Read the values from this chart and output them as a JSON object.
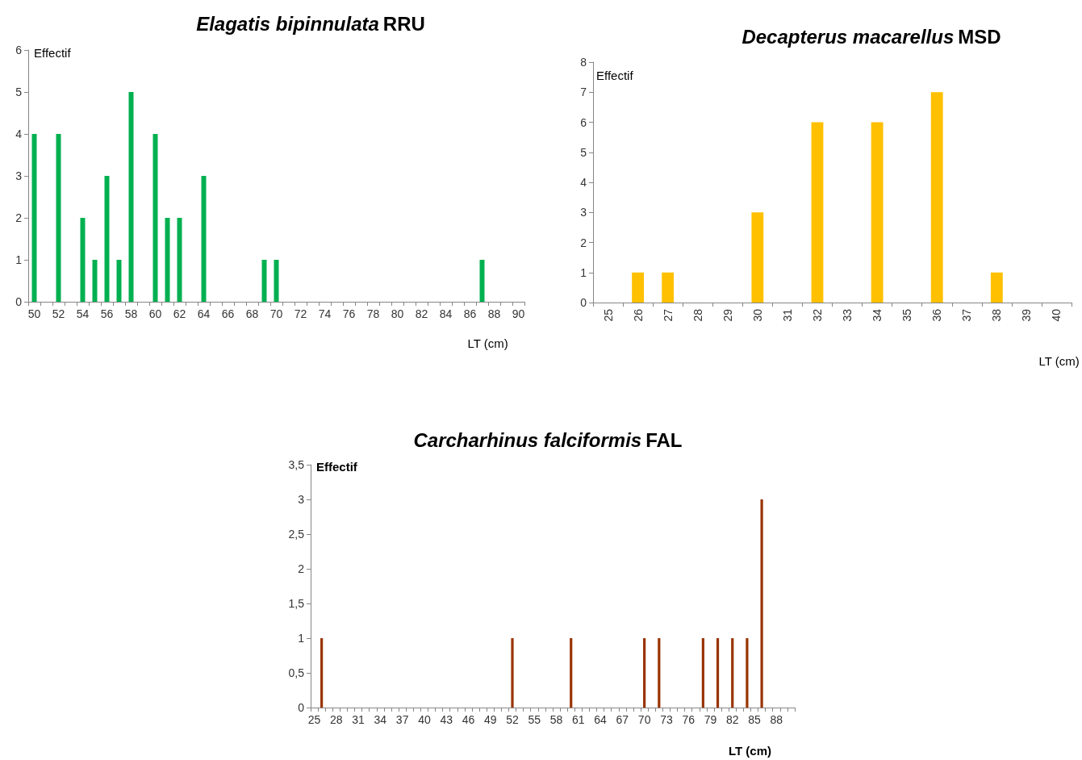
{
  "chart_data": [
    {
      "type": "bar",
      "title": "Elagatis bipinnulata RRU",
      "xlabel": "LT (cm)",
      "ylabel": "Effectif",
      "color": "#00b050",
      "categories": [
        "50",
        null,
        "52",
        null,
        "54",
        null,
        "56",
        null,
        "58",
        null,
        "60",
        null,
        "62",
        null,
        "64",
        null,
        "66",
        null,
        "68",
        null,
        "70",
        null,
        "72",
        null,
        "74",
        null,
        "76",
        null,
        "78",
        null,
        "80",
        null,
        "82",
        null,
        "84",
        null,
        "86",
        null,
        "88",
        null,
        "90"
      ],
      "values": [
        4,
        0,
        4,
        0,
        2,
        1,
        3,
        1,
        5,
        0,
        4,
        2,
        2,
        0,
        3,
        0,
        0,
        0,
        0,
        1,
        1,
        0,
        0,
        0,
        0,
        0,
        0,
        0,
        0,
        0,
        0,
        0,
        0,
        0,
        0,
        0,
        0,
        1,
        0,
        0,
        0
      ],
      "ylim": [
        0,
        6
      ],
      "yticks": [
        0,
        1,
        2,
        3,
        4,
        5,
        6
      ]
    },
    {
      "type": "bar",
      "title": "Decapterus macarellus MSD",
      "xlabel": "LT (cm)",
      "ylabel": "Effectif",
      "color": "#ffc000",
      "categories": [
        "25",
        "26",
        "27",
        "28",
        "29",
        "30",
        "31",
        "32",
        "33",
        "34",
        "35",
        "36",
        "37",
        "38",
        "39",
        "40"
      ],
      "values": [
        0,
        1,
        1,
        0,
        0,
        3,
        0,
        6,
        0,
        6,
        0,
        7,
        0,
        1,
        0,
        0
      ],
      "ylim": [
        0,
        8
      ],
      "yticks": [
        0,
        1,
        2,
        3,
        4,
        5,
        6,
        7,
        8
      ]
    },
    {
      "type": "bar",
      "title": "Carcharhinus falciformis FAL",
      "xlabel": "LT (cm)",
      "ylabel": "Effectif",
      "color": "#993300",
      "categories": [
        "25",
        null,
        null,
        "28",
        null,
        null,
        "31",
        null,
        null,
        "34",
        null,
        null,
        "37",
        null,
        null,
        "40",
        null,
        null,
        "43",
        null,
        null,
        "46",
        null,
        null,
        "49",
        null,
        null,
        "52",
        null,
        null,
        "55",
        null,
        null,
        "58",
        null,
        null,
        "61",
        null,
        null,
        "64",
        null,
        null,
        "67",
        null,
        null,
        "70",
        null,
        null,
        "73",
        null,
        null,
        "76",
        null,
        null,
        "79",
        null,
        null,
        "82",
        null,
        null,
        "85",
        null,
        null,
        "88",
        null,
        null
      ],
      "values": [
        0,
        1,
        0,
        0,
        0,
        0,
        0,
        0,
        0,
        0,
        0,
        0,
        0,
        0,
        0,
        0,
        0,
        0,
        0,
        0,
        0,
        0,
        0,
        0,
        0,
        0,
        0,
        1,
        0,
        0,
        0,
        0,
        0,
        0,
        0,
        1,
        0,
        0,
        0,
        0,
        0,
        0,
        0,
        0,
        0,
        1,
        0,
        1,
        0,
        0,
        0,
        0,
        0,
        1,
        0,
        1,
        0,
        1,
        0,
        1,
        0,
        3,
        0,
        0,
        0,
        0
      ],
      "ylim": [
        0,
        3.5
      ],
      "yticks": [
        0,
        {
          "value": 0.5,
          "label": "0,5"
        },
        1,
        {
          "value": 1.5,
          "label": "1,5"
        },
        2,
        {
          "value": 2.5,
          "label": "2,5"
        },
        3,
        {
          "value": 3.5,
          "label": "3,5"
        }
      ]
    }
  ]
}
